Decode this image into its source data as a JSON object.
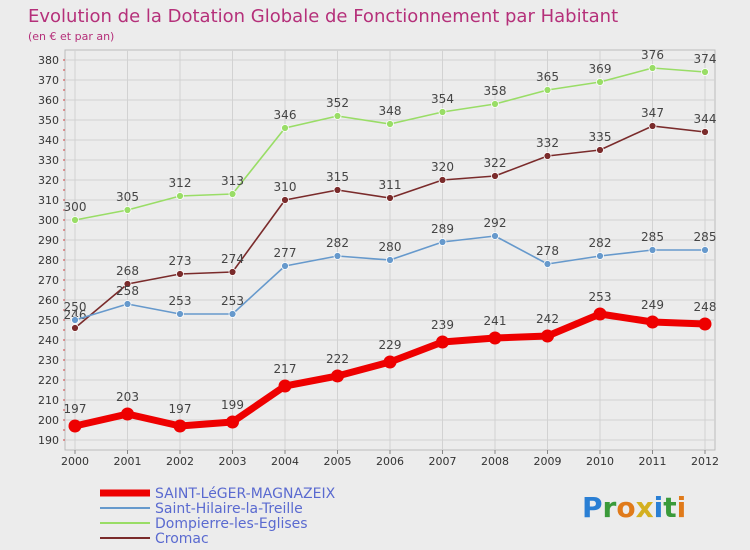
{
  "chart_data": {
    "type": "line",
    "title": "Evolution de la Dotation Globale de Fonctionnement par Habitant",
    "subtitle": "(en € et par an)",
    "x": [
      "2000",
      "2001",
      "2002",
      "2003",
      "2004",
      "2005",
      "2006",
      "2007",
      "2008",
      "2009",
      "2010",
      "2011",
      "2012"
    ],
    "ylim": [
      190,
      380
    ],
    "ystep": 10,
    "grid": true,
    "legend_position": "bottom-left",
    "series": [
      {
        "name": "SAINT-LéGER-MAGNAZEIX",
        "color": "#ee0000",
        "values": [
          197,
          203,
          197,
          199,
          217,
          222,
          229,
          239,
          241,
          242,
          253,
          249,
          248
        ]
      },
      {
        "name": "Saint-Hilaire-la-Treille",
        "color": "#6699cc",
        "values": [
          250,
          258,
          253,
          253,
          277,
          282,
          280,
          289,
          292,
          278,
          282,
          285,
          285
        ]
      },
      {
        "name": "Dompierre-les-Eglises",
        "color": "#99dd66",
        "values": [
          300,
          305,
          312,
          313,
          346,
          352,
          348,
          354,
          358,
          365,
          369,
          376,
          374
        ]
      },
      {
        "name": "Cromac",
        "color": "#7a2b2b",
        "values": [
          246,
          268,
          273,
          274,
          310,
          315,
          311,
          320,
          322,
          332,
          335,
          347,
          344
        ]
      }
    ]
  },
  "logo": {
    "text": "Proxiti"
  }
}
